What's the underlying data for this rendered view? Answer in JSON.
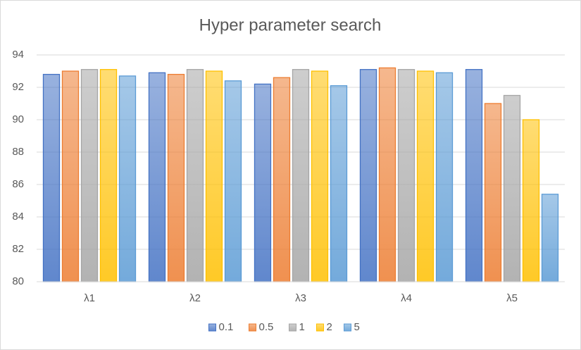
{
  "chart_data": {
    "type": "bar",
    "title": "Hyper parameter search",
    "categories": [
      "λ1",
      "λ2",
      "λ3",
      "λ4",
      "λ5"
    ],
    "series": [
      {
        "name": "0.1",
        "color": "#4472c4",
        "values": [
          92.8,
          92.9,
          92.2,
          93.1,
          93.1
        ]
      },
      {
        "name": "0.5",
        "color": "#ed7d31",
        "values": [
          93.0,
          92.8,
          92.6,
          93.2,
          91.0
        ]
      },
      {
        "name": "1",
        "color": "#a5a5a5",
        "values": [
          93.1,
          93.1,
          93.1,
          93.1,
          91.5
        ]
      },
      {
        "name": "2",
        "color": "#ffc000",
        "values": [
          93.1,
          93.0,
          93.0,
          93.0,
          90.0
        ]
      },
      {
        "name": "5",
        "color": "#5b9bd5",
        "values": [
          92.7,
          92.4,
          92.1,
          92.9,
          85.4
        ]
      }
    ],
    "ylim": [
      80,
      94
    ],
    "yticks": [
      80,
      82,
      84,
      86,
      88,
      90,
      92,
      94
    ],
    "grid": true,
    "legend": "bottom"
  }
}
